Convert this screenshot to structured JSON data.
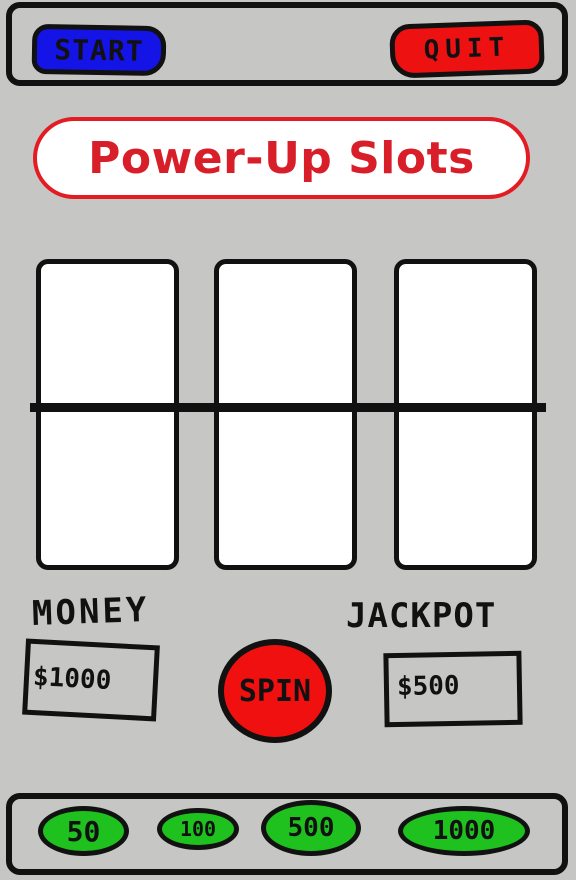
{
  "header": {
    "start_label": "START",
    "quit_label": "QUIT"
  },
  "title": "Power-Up Slots",
  "reels": [
    "",
    "",
    ""
  ],
  "money": {
    "label": "MONEY",
    "value": "$1000"
  },
  "jackpot": {
    "label": "JACKPOT",
    "value": "$500"
  },
  "spin_label": "SPIN",
  "bets": [
    "50",
    "100",
    "500",
    "1000"
  ],
  "colors": {
    "background": "#c6c6c4",
    "start": "#1414e6",
    "quit": "#ee1111",
    "title": "#d81e28",
    "spin": "#f01010",
    "bet": "#1fc11f"
  }
}
